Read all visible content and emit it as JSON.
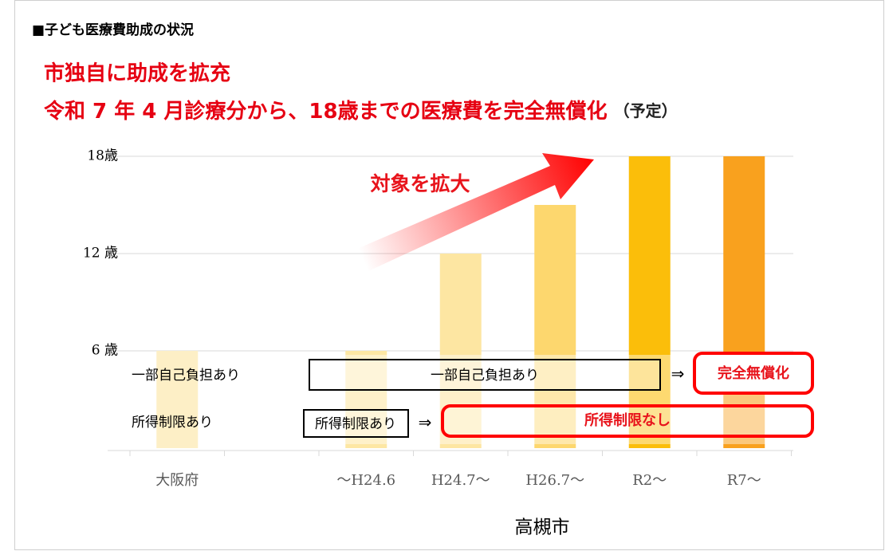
{
  "chart_data": {
    "type": "bar",
    "header": "■子ども医療費助成の状況",
    "title": "市独自に助成を拡充",
    "subtitle": "令和 7 年 4 月診療分から、18歳までの医療費を完全無償化",
    "subtitle_note": "（予定）",
    "categories": [
      "大阪府",
      null,
      "～H24.6",
      "H24.7～",
      "H26.7～",
      "R2～",
      "R7～"
    ],
    "values": [
      6,
      null,
      6,
      12,
      15,
      18,
      18
    ],
    "colors": [
      "#fdefc6",
      null,
      "#fde7a4",
      "#fde6a2",
      "#fdd76e",
      "#fbbe0a",
      "#f9a11e"
    ],
    "ylim": [
      0,
      18
    ],
    "yticks": [
      {
        "value": 6,
        "label": "6 歳"
      },
      {
        "value": 12,
        "label": "12 歳"
      },
      {
        "value": 18,
        "label": "18歳"
      }
    ],
    "grid": true,
    "xlabel": "高槻市",
    "arrow_label": "対象を拡大",
    "row_labels": [
      "一部自己負担あり",
      "所得制限あり"
    ],
    "boxes": [
      "一部自己負担あり",
      "完全無償化",
      "所得制限あり",
      "所得制限なし"
    ],
    "arrows": [
      "⇒",
      "⇒"
    ]
  }
}
